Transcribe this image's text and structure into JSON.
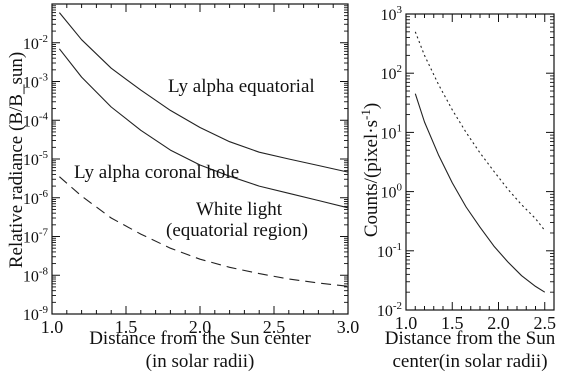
{
  "chart_data": [
    {
      "type": "line",
      "xlabel": "Distance from the Sun center",
      "xlabel2": "(in solar radii)",
      "ylabel": "Relative radiance (B/B_sun)",
      "xlim": [
        1.0,
        3.0
      ],
      "ylim": [
        1e-09,
        0.1
      ],
      "yscale": "log",
      "xticks": [
        {
          "value": 1.0,
          "label": "1.0"
        },
        {
          "value": 1.5,
          "label": "1.5"
        },
        {
          "value": 2.0,
          "label": "2.0"
        },
        {
          "value": 2.5,
          "label": "2.5"
        },
        {
          "value": 3.0,
          "label": "3.0"
        }
      ],
      "yticks": [
        {
          "value": 0.01,
          "mantissa": "10",
          "exp": "-2"
        },
        {
          "value": 0.001,
          "mantissa": "10",
          "exp": "-3"
        },
        {
          "value": 0.0001,
          "mantissa": "10",
          "exp": "-4"
        },
        {
          "value": 1e-05,
          "mantissa": "10",
          "exp": "-5"
        },
        {
          "value": 1e-06,
          "mantissa": "10",
          "exp": "-6"
        },
        {
          "value": 1e-07,
          "mantissa": "10",
          "exp": "-7"
        },
        {
          "value": 1e-08,
          "mantissa": "10",
          "exp": "-8"
        },
        {
          "value": 1e-09,
          "mantissa": "10",
          "exp": "-9"
        }
      ],
      "series": [
        {
          "name": "Ly alpha equatorial",
          "style": "solid",
          "x": [
            1.05,
            1.2,
            1.4,
            1.6,
            1.8,
            2.0,
            2.2,
            2.4,
            2.6,
            2.8,
            3.0
          ],
          "y": [
            0.06,
            0.012,
            0.0022,
            0.0006,
            0.00018,
            6.5e-05,
            2.8e-05,
            1.5e-05,
            1e-05,
            6.8e-06,
            4.6e-06
          ]
        },
        {
          "name": "Ly alpha coronal hole",
          "style": "solid",
          "x": [
            1.05,
            1.2,
            1.4,
            1.6,
            1.8,
            2.0,
            2.2,
            2.4,
            2.6,
            2.8,
            3.0
          ],
          "y": [
            0.007,
            0.0013,
            0.00022,
            5.5e-05,
            1.7e-05,
            7e-06,
            3.6e-06,
            2e-06,
            1.3e-06,
            8.5e-07,
            5.5e-07
          ]
        },
        {
          "name": "White light (equatorial region)",
          "style": "dashed",
          "x": [
            1.05,
            1.2,
            1.4,
            1.6,
            1.8,
            2.0,
            2.2,
            2.4,
            2.6,
            2.8,
            3.0
          ],
          "y": [
            3.5e-06,
            1.1e-06,
            3e-07,
            1.15e-07,
            5e-08,
            2.6e-08,
            1.6e-08,
            1.1e-08,
            8e-09,
            6.3e-09,
            5.2e-09
          ]
        }
      ],
      "annotations": [
        {
          "text": "Ly alpha equatorial"
        },
        {
          "text": "Ly alpha coronal hole"
        },
        {
          "text": "White light"
        },
        {
          "text": "(equatorial region)"
        }
      ]
    },
    {
      "type": "line",
      "xlabel": "Distance from the Sun",
      "xlabel2": "center(in solar radii)",
      "ylabel": "Counts/(pixel·s",
      "ylabel_sup": "-1",
      "ylabel_end": ")",
      "xlim": [
        1.0,
        2.6
      ],
      "ylim": [
        0.01,
        1000.0
      ],
      "yscale": "log",
      "xticks": [
        {
          "value": 1.0,
          "label": "1.0"
        },
        {
          "value": 1.5,
          "label": "1.5"
        },
        {
          "value": 2.0,
          "label": "2.0"
        },
        {
          "value": 2.5,
          "label": "2.5"
        }
      ],
      "yticks": [
        {
          "value": 1000.0,
          "mantissa": "10",
          "exp": "3"
        },
        {
          "value": 100.0,
          "mantissa": "10",
          "exp": "2"
        },
        {
          "value": 10.0,
          "mantissa": "10",
          "exp": "1"
        },
        {
          "value": 1.0,
          "mantissa": "10",
          "exp": "0"
        },
        {
          "value": 0.1,
          "mantissa": "10",
          "exp": "-1"
        },
        {
          "value": 0.01,
          "mantissa": "10",
          "exp": "-2"
        }
      ],
      "series": [
        {
          "style": "dotted",
          "x": [
            1.1,
            1.2,
            1.35,
            1.5,
            1.65,
            1.8,
            1.95,
            2.1,
            2.25,
            2.4,
            2.5
          ],
          "y": [
            500,
            200,
            65,
            24,
            10,
            4.5,
            2.2,
            1.1,
            0.6,
            0.35,
            0.22
          ]
        },
        {
          "style": "solid",
          "x": [
            1.1,
            1.2,
            1.35,
            1.5,
            1.65,
            1.8,
            1.95,
            2.1,
            2.25,
            2.4,
            2.5
          ],
          "y": [
            45,
            15,
            4.2,
            1.4,
            0.55,
            0.25,
            0.12,
            0.065,
            0.038,
            0.025,
            0.02
          ]
        }
      ]
    }
  ]
}
